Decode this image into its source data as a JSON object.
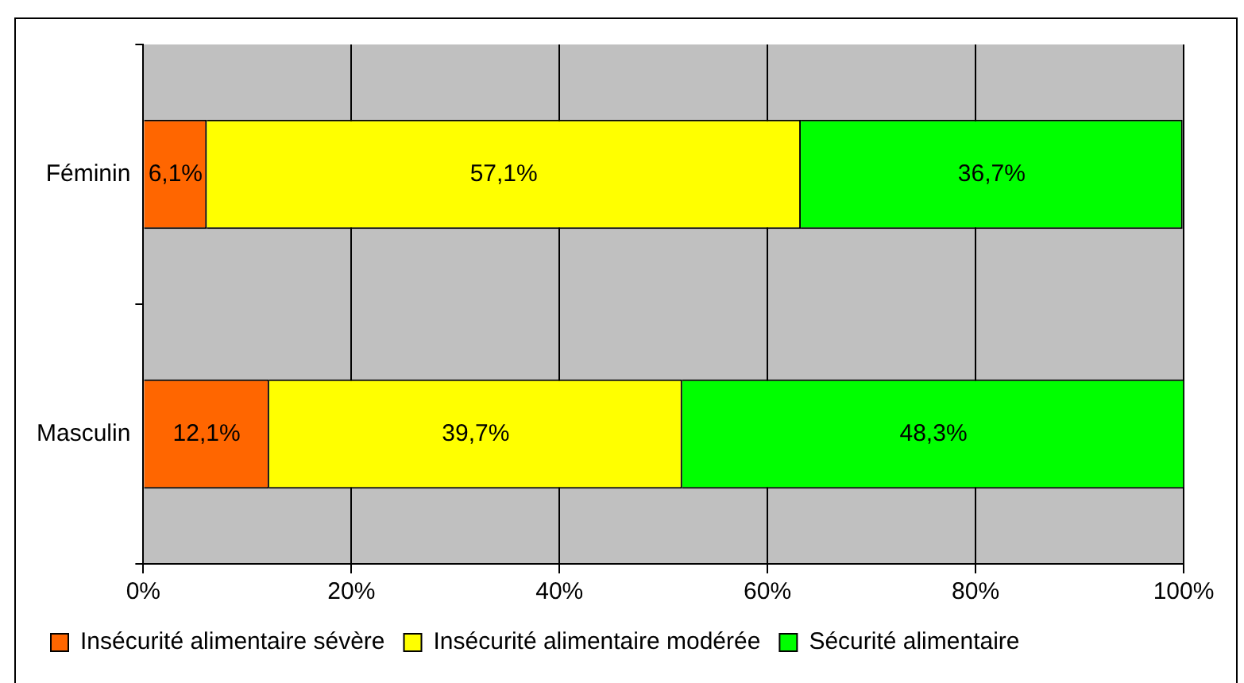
{
  "chart_data": {
    "type": "bar",
    "orientation": "horizontal",
    "stacked": true,
    "categories": [
      "Féminin",
      "Masculin"
    ],
    "series": [
      {
        "name": "Insécurité alimentaire sévère",
        "color": "#ff6600",
        "values": [
          6.1,
          12.1
        ],
        "value_labels": [
          "6,1%",
          "12,1%"
        ]
      },
      {
        "name": "Insécurité alimentaire modérée",
        "color": "#ffff00",
        "values": [
          57.1,
          39.7
        ],
        "value_labels": [
          "57,1%",
          "39,7%"
        ]
      },
      {
        "name": "Sécurité alimentaire",
        "color": "#00ff00",
        "values": [
          36.7,
          48.3
        ],
        "value_labels": [
          "36,7%",
          "48,3%"
        ]
      }
    ],
    "xlim": [
      0,
      100
    ],
    "xticks": [
      {
        "value": 0,
        "label": "0%"
      },
      {
        "value": 20,
        "label": "20%"
      },
      {
        "value": 40,
        "label": "40%"
      },
      {
        "value": 60,
        "label": "60%"
      },
      {
        "value": 80,
        "label": "80%"
      },
      {
        "value": 100,
        "label": "100%"
      }
    ],
    "grid": "x",
    "legend": "bottom"
  }
}
